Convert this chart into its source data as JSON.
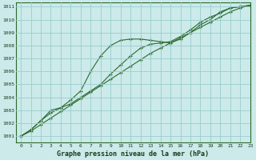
{
  "title": "Graphe pression niveau de la mer (hPa)",
  "background_color": "#cceaea",
  "grid_color": "#99cccc",
  "line_color": "#2d6a2d",
  "xlim": [
    -0.5,
    23
  ],
  "ylim": [
    1000.5,
    1011.3
  ],
  "xticks": [
    0,
    1,
    2,
    3,
    4,
    5,
    6,
    7,
    8,
    9,
    10,
    11,
    12,
    13,
    14,
    15,
    16,
    17,
    18,
    19,
    20,
    21,
    22,
    23
  ],
  "yticks": [
    1001,
    1002,
    1003,
    1004,
    1005,
    1006,
    1007,
    1008,
    1009,
    1010,
    1011
  ],
  "series": [
    [
      1001.0,
      1001.5,
      1002.2,
      1002.8,
      1003.2,
      1003.8,
      1004.5,
      1006.0,
      1007.2,
      1008.0,
      1008.4,
      1008.5,
      1008.5,
      1008.4,
      1008.3,
      1008.2,
      1008.5,
      1009.0,
      1009.6,
      1010.0,
      1010.6,
      1010.9,
      1011.0,
      1011.1
    ],
    [
      1001.0,
      1001.5,
      1002.2,
      1003.0,
      1003.2,
      1003.5,
      1004.0,
      1004.5,
      1005.0,
      1005.8,
      1006.5,
      1007.2,
      1007.8,
      1008.1,
      1008.2,
      1008.3,
      1008.7,
      1009.2,
      1009.8,
      1010.2,
      1010.5,
      1010.9,
      1011.0,
      1011.1
    ],
    [
      1001.0,
      1001.4,
      1001.9,
      1002.4,
      1002.9,
      1003.4,
      1003.9,
      1004.4,
      1004.9,
      1005.4,
      1005.9,
      1006.4,
      1006.9,
      1007.4,
      1007.8,
      1008.2,
      1008.6,
      1009.0,
      1009.4,
      1009.8,
      1010.2,
      1010.6,
      1010.9,
      1011.1
    ]
  ]
}
